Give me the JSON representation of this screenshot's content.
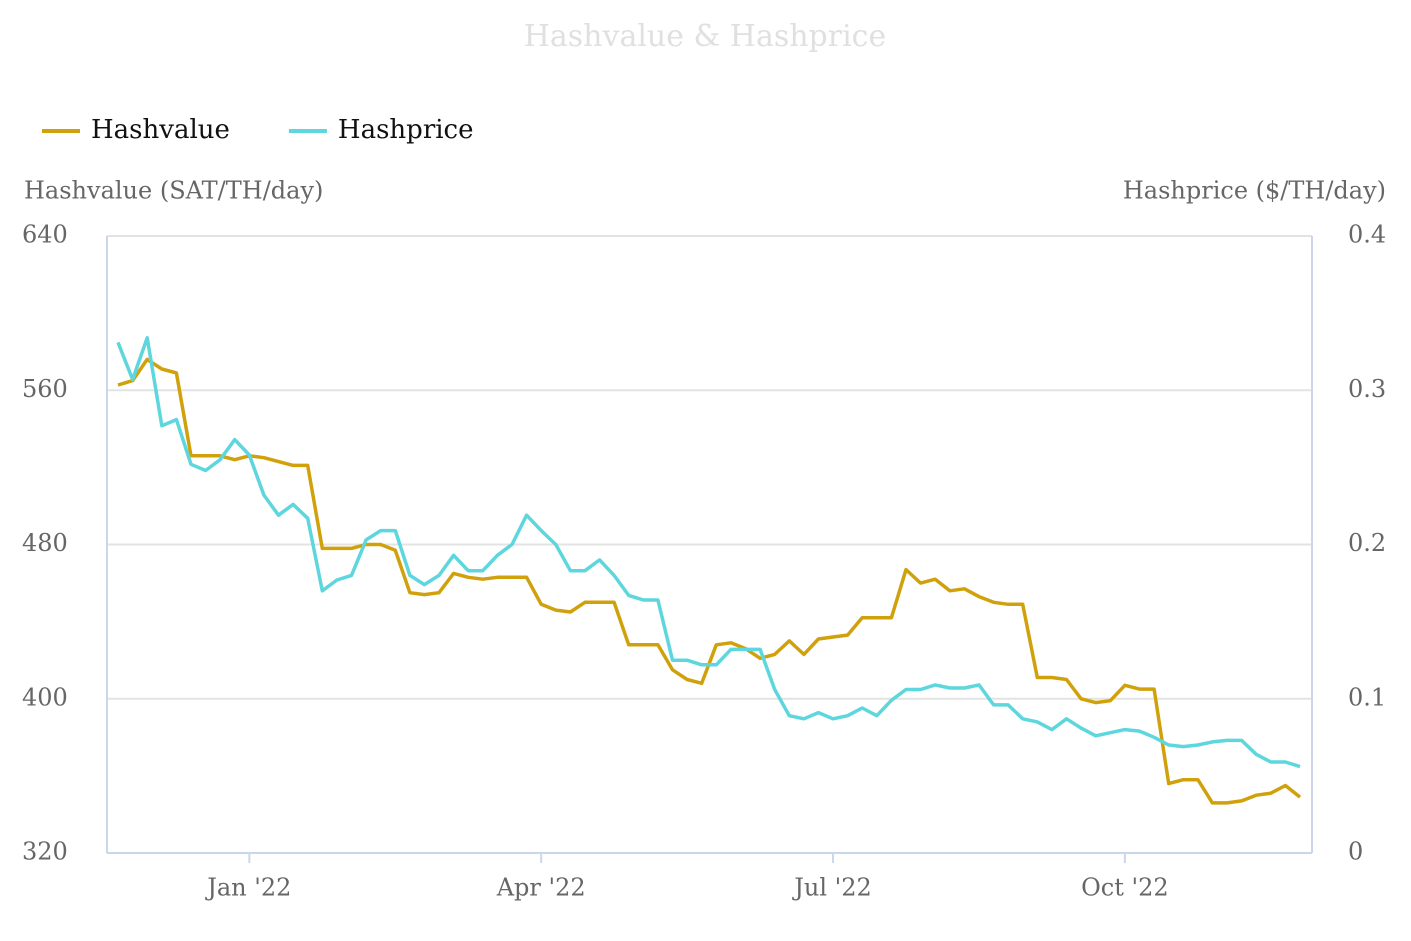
{
  "chart_data": {
    "type": "line",
    "title": "Hashvalue & Hashprice",
    "y_label": "Hashvalue (SAT/TH/day)",
    "y2_label": "Hashprice ($/TH/day)",
    "categories": [
      null,
      null,
      null,
      null,
      null,
      null,
      null,
      null,
      null,
      "Jan '22",
      null,
      null,
      null,
      null,
      null,
      null,
      null,
      null,
      null,
      null,
      null,
      null,
      null,
      null,
      null,
      null,
      null,
      null,
      null,
      "Apr '22",
      null,
      null,
      null,
      null,
      null,
      null,
      null,
      null,
      null,
      null,
      null,
      null,
      null,
      null,
      null,
      null,
      null,
      null,
      null,
      "Jul '22",
      null,
      null,
      null,
      null,
      null,
      null,
      null,
      null,
      null,
      null,
      null,
      null,
      null,
      null,
      null,
      null,
      null,
      null,
      null,
      "Oct '22",
      null,
      null,
      null,
      null,
      null,
      null,
      null,
      null,
      null,
      null,
      null,
      null
    ],
    "series": [
      {
        "name": "Hashvalue",
        "color": "#d1a10c",
        "values": [
          562.7,
          565,
          576,
          571,
          569,
          526,
          526,
          526,
          524,
          526,
          525,
          523,
          521,
          521,
          478,
          478,
          478,
          480,
          480,
          477,
          455,
          454,
          455,
          465,
          463,
          462,
          463,
          463,
          463,
          449,
          446,
          445,
          450,
          450,
          450,
          428,
          428,
          428,
          415,
          410,
          408,
          428,
          429,
          426,
          421,
          423,
          430,
          423,
          431,
          432,
          433,
          442,
          442,
          442,
          467,
          460,
          462,
          456,
          457,
          453,
          450,
          449,
          449,
          411,
          411,
          410,
          400,
          398,
          399,
          407,
          405,
          405,
          356,
          358,
          358,
          346,
          346,
          347,
          350,
          351,
          355,
          349
        ]
      },
      {
        "name": "Hashprice",
        "color": "#5dd6de",
        "axis": "y2",
        "values": [
          0.331,
          0.307,
          0.334,
          0.277,
          0.281,
          0.252,
          0.248,
          0.255,
          0.268,
          0.258,
          0.232,
          0.219,
          0.226,
          0.217,
          0.17,
          0.177,
          0.18,
          0.203,
          0.209,
          0.209,
          0.18,
          0.174,
          0.18,
          0.193,
          0.183,
          0.183,
          0.193,
          0.2,
          0.219,
          0.209,
          0.2,
          0.183,
          0.183,
          0.19,
          0.18,
          0.167,
          0.164,
          0.164,
          0.125,
          0.125,
          0.122,
          0.122,
          0.132,
          0.132,
          0.132,
          0.106,
          0.089,
          0.087,
          0.091,
          0.087,
          0.089,
          0.094,
          0.089,
          0.099,
          0.106,
          0.106,
          0.109,
          0.107,
          0.107,
          0.109,
          0.096,
          0.096,
          0.087,
          0.085,
          0.08,
          0.087,
          0.081,
          0.076,
          0.078,
          0.08,
          0.079,
          0.075,
          0.07,
          0.069,
          0.07,
          0.072,
          0.073,
          0.073,
          0.064,
          0.059,
          0.059,
          0.056
        ]
      }
    ],
    "ylim": [
      320,
      640
    ],
    "yticks": [
      320,
      400,
      480,
      560,
      640
    ],
    "y2lim": [
      0,
      0.4
    ],
    "y2ticks": [
      0,
      0.1,
      0.2,
      0.3,
      0.4
    ],
    "grid": true,
    "legend": "top-left"
  }
}
